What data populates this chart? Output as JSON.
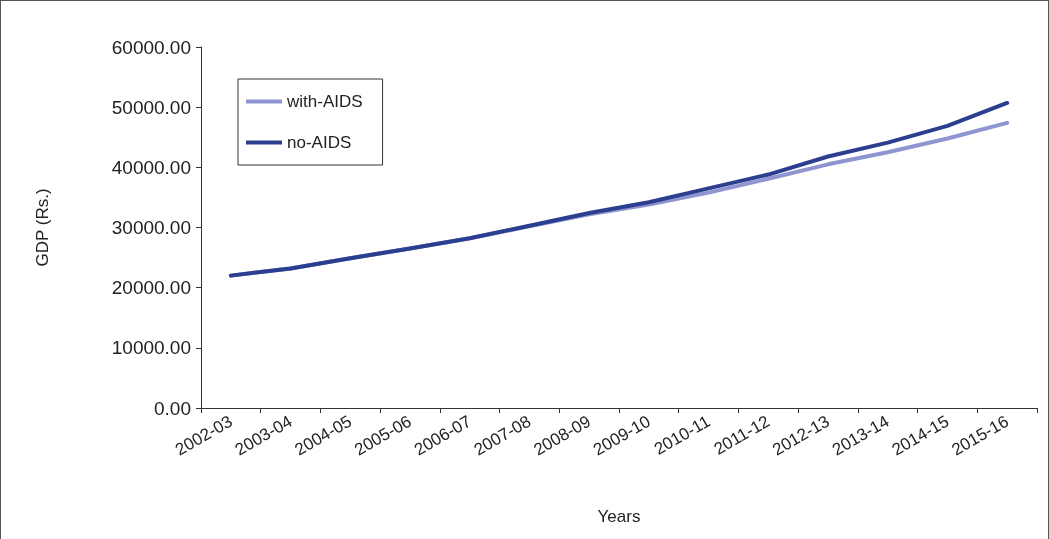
{
  "chart_data": {
    "type": "line",
    "xlabel": "Years",
    "ylabel": "GDP (Rs.)",
    "categories": [
      "2002-03",
      "2003-04",
      "2004-05",
      "2005-06",
      "2006-07",
      "2007-08",
      "2008-09",
      "2009-10",
      "2010-11",
      "2011-12",
      "2012-13",
      "2013-14",
      "2014-15",
      "2015-16"
    ],
    "series": [
      {
        "name": "with-AIDS",
        "color": "#8e95d0",
        "values": [
          22000,
          23200,
          24900,
          26500,
          28200,
          30200,
          32200,
          33800,
          35800,
          38100,
          40500,
          42500,
          44800,
          47400
        ]
      },
      {
        "name": "no-AIDS",
        "color": "#2c3e8f",
        "values": [
          22000,
          23200,
          24900,
          26500,
          28200,
          30300,
          32400,
          34200,
          36500,
          38800,
          41800,
          44100,
          46900,
          50700
        ]
      }
    ],
    "ylim": [
      0,
      60000
    ],
    "yticks": [
      {
        "value": 0,
        "label": "0.00"
      },
      {
        "value": 10000,
        "label": "10000.00"
      },
      {
        "value": 20000,
        "label": "20000.00"
      },
      {
        "value": 30000,
        "label": "30000.00"
      },
      {
        "value": 40000,
        "label": "40000.00"
      },
      {
        "value": 50000,
        "label": "50000.00"
      },
      {
        "value": 60000,
        "label": "60000.00"
      }
    ],
    "grid": false,
    "legend": "top left",
    "marker": "none",
    "line_style": "solid"
  }
}
